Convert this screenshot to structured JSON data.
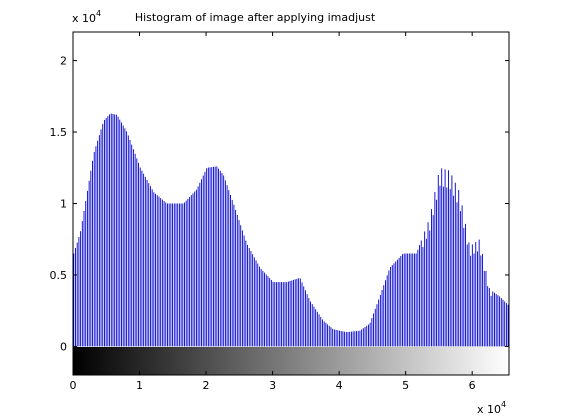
{
  "chart_data": {
    "type": "bar",
    "title": "Histogram of image after applying imadjust",
    "xlabel": "",
    "ylabel": "",
    "xlim": [
      0,
      65535
    ],
    "ylim": [
      -2000,
      22000
    ],
    "grid": false,
    "x_multiplier_label": "x 10",
    "x_multiplier_exp": "4",
    "y_multiplier_label": "x 10",
    "y_multiplier_exp": "4",
    "x_ticks": [
      0,
      1,
      2,
      3,
      4,
      5,
      6
    ],
    "y_ticks": [
      0,
      0.5,
      1,
      1.5,
      2
    ],
    "x_tick_labels": [
      "0",
      "1",
      "2",
      "3",
      "4",
      "5",
      "6"
    ],
    "y_tick_labels": [
      "0",
      "0.5",
      "1",
      "1.5",
      "2"
    ],
    "bar_color": "#0000cc",
    "colorbar": {
      "from": "#000000",
      "to": "#ffffff"
    },
    "bin_spacing": 256,
    "bins": 256,
    "envelope": {
      "x": [
        0,
        1000,
        3000,
        4500,
        5500,
        6500,
        8000,
        10000,
        12000,
        14000,
        16500,
        18500,
        20000,
        21500,
        22500,
        24000,
        26000,
        28000,
        30000,
        32000,
        34000,
        35500,
        37500,
        39000,
        41000,
        43000,
        44500,
        46000,
        47500,
        49500,
        51500,
        53500,
        55000,
        56500,
        58000,
        59500,
        61000,
        62500,
        64000,
        65535
      ],
      "y": [
        6500,
        8000,
        13500,
        15800,
        16300,
        16200,
        15000,
        12500,
        10800,
        10000,
        10000,
        11000,
        12500,
        12600,
        12000,
        10000,
        7200,
        5500,
        4500,
        4500,
        4800,
        3200,
        1800,
        1200,
        1000,
        1100,
        1600,
        3500,
        5500,
        6500,
        6500,
        9000,
        12500,
        12300,
        10800,
        7000,
        7500,
        4000,
        3500,
        2800
      ]
    },
    "series": [
      {
        "values": []
      }
    ]
  }
}
